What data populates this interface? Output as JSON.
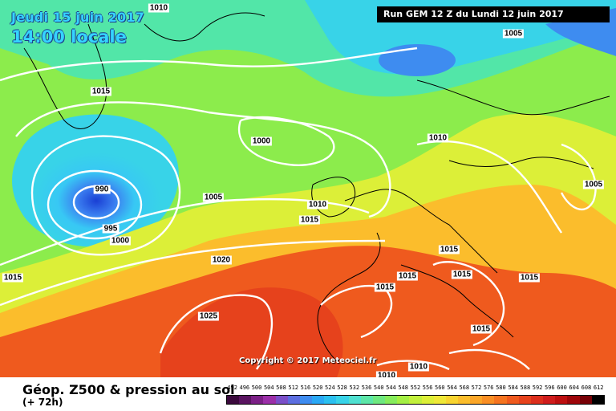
{
  "header": {
    "date": "Jeudi 15 juin 2017",
    "time": "14:00 locale",
    "run": "Run GEM 12 Z du Lundi 12 juin 2017"
  },
  "copyright": "Copyright © 2017 Meteociel.fr",
  "footer": {
    "product": "Géop. Z500 & pression au sol",
    "lead": "(+ 72h)"
  },
  "isobar_labels": [
    "1010",
    "1005",
    "1015",
    "1000",
    "990",
    "995",
    "1000",
    "1005",
    "1010",
    "1015",
    "1010",
    "1015",
    "1020",
    "1015",
    "1025",
    "1015",
    "1015",
    "1015",
    "1010",
    "1010",
    "1015",
    "1015",
    "1005"
  ],
  "scale": {
    "values": [
      "492",
      "496",
      "500",
      "504",
      "508",
      "512",
      "516",
      "520",
      "524",
      "528",
      "532",
      "536",
      "540",
      "544",
      "548",
      "552",
      "556",
      "560",
      "564",
      "568",
      "572",
      "576",
      "580",
      "584",
      "588",
      "592",
      "596",
      "600",
      "604",
      "608",
      "612"
    ],
    "colors": [
      "#3b0a3d",
      "#5a1460",
      "#7b1f86",
      "#9b2fa8",
      "#7a4fc8",
      "#5c6ee0",
      "#3e8cf0",
      "#2aa8f5",
      "#2bc0f0",
      "#38d3e8",
      "#4fe0d0",
      "#5ce6a8",
      "#6ee880",
      "#86ec5c",
      "#a4ef44",
      "#c2f03c",
      "#dcef38",
      "#efe838",
      "#f8d430",
      "#fbbd2c",
      "#fba628",
      "#f98e24",
      "#f57420",
      "#ef5a1e",
      "#e6421c",
      "#dc2e1c",
      "#cf1c1c",
      "#bd0f10",
      "#9e060a",
      "#780006",
      "#000000"
    ]
  }
}
